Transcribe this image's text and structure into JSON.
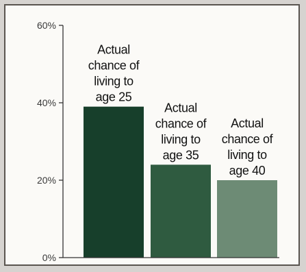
{
  "chart_data": {
    "type": "bar",
    "categories": [
      [
        "Actual",
        "chance of",
        "living to",
        "age 25"
      ],
      [
        "Actual",
        "chance of",
        "living to",
        "age 35"
      ],
      [
        "Actual",
        "chance of",
        "living to",
        "age 40"
      ]
    ],
    "values": [
      39,
      24,
      20
    ],
    "colors": [
      "#173f2b",
      "#2f5b40",
      "#6d8b75"
    ],
    "ylim": [
      0,
      60
    ],
    "yticks": [
      0,
      20,
      40,
      60
    ],
    "ytick_labels": [
      "0%",
      "20%",
      "40%",
      "60%"
    ],
    "title": "",
    "xlabel": "",
    "ylabel": "",
    "grid": false,
    "legend": "none"
  }
}
